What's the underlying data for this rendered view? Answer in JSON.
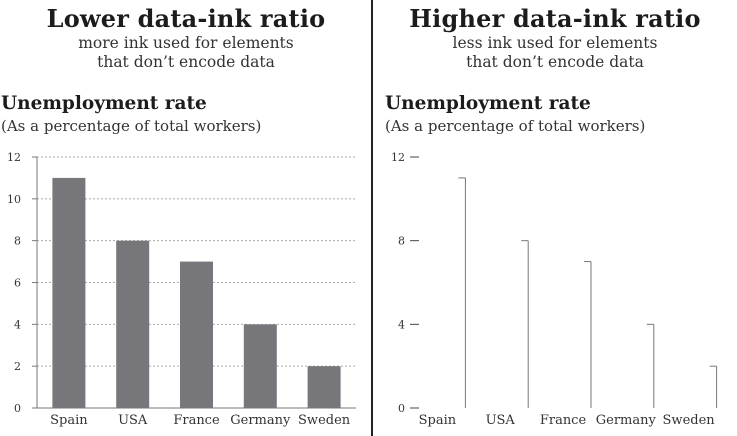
{
  "panels": [
    {
      "heading": "Lower data-ink ratio",
      "subheading_lines": [
        "more ink used for elements",
        "that don’t encode data"
      ],
      "colors": {
        "bar": "#77777b",
        "grid": "#aaaaaa",
        "axis": "#777777"
      },
      "chart_data": {
        "type": "bar",
        "title": "Unemployment rate",
        "subtitle": "(As a percentage of total workers)",
        "categories": [
          "Spain",
          "USA",
          "France",
          "Germany",
          "Sweden"
        ],
        "values": [
          11,
          8,
          7,
          4,
          2
        ],
        "ylim": [
          0,
          12
        ],
        "yticks": [
          0,
          2,
          4,
          6,
          8,
          10,
          12
        ],
        "grid": true,
        "style": "filled bars with dashed gridlines"
      }
    },
    {
      "heading": "Higher data-ink ratio",
      "subheading_lines": [
        "less ink used for elements",
        "that don’t encode data"
      ],
      "colors": {
        "line": "#777777",
        "axis": "#444444"
      },
      "chart_data": {
        "type": "bar",
        "title": "Unemployment rate",
        "subtitle": "(As a percentage of total workers)",
        "categories": [
          "Spain",
          "USA",
          "France",
          "Germany",
          "Sweden"
        ],
        "values": [
          11,
          8,
          7,
          4,
          2
        ],
        "ylim": [
          0,
          12
        ],
        "yticks": [
          0,
          4,
          8,
          12
        ],
        "grid": false,
        "style": "thin line bars, no gridlines"
      }
    }
  ]
}
